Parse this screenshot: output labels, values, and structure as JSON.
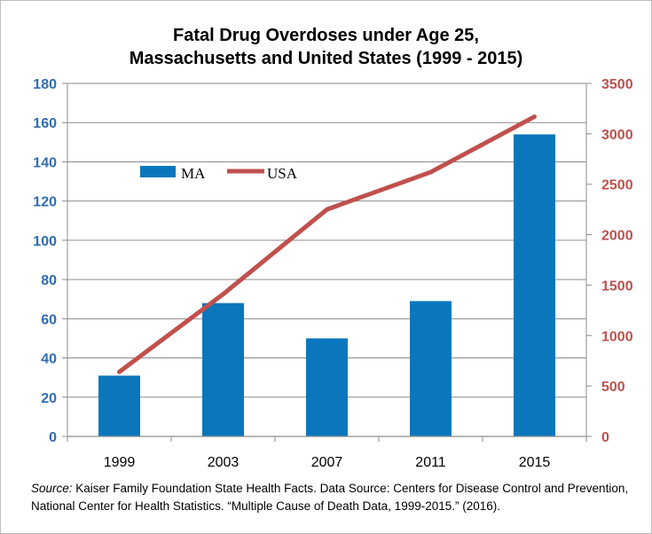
{
  "chart_data": {
    "type": "bar+line",
    "title_line1": "Fatal Drug Overdoses under Age 25,",
    "title_line2": "Massachusetts and United States (1999 - 2015)",
    "categories": [
      "1999",
      "2003",
      "2007",
      "2011",
      "2015"
    ],
    "series": [
      {
        "name": "MA",
        "type": "bar",
        "axis": "left",
        "color": "#0a77bd",
        "values": [
          31,
          68,
          50,
          69,
          154
        ]
      },
      {
        "name": "USA",
        "type": "line",
        "axis": "right",
        "color": "#c0504d",
        "values": [
          640,
          1410,
          2250,
          2620,
          3170
        ]
      }
    ],
    "left_axis": {
      "ylim": [
        0,
        180
      ],
      "ticks": [
        "0",
        "20",
        "40",
        "60",
        "80",
        "100",
        "120",
        "140",
        "160",
        "180"
      ],
      "color": "#2e6db4"
    },
    "right_axis": {
      "ylim": [
        0,
        3500
      ],
      "ticks": [
        "0",
        "500",
        "1000",
        "1500",
        "2000",
        "2500",
        "3000",
        "3500"
      ],
      "color": "#c0504d"
    },
    "legend": {
      "position": "upper-left",
      "entries": [
        "MA",
        "USA"
      ]
    },
    "grid": "horizontal (left axis)"
  },
  "source": {
    "label": "Source:",
    "text": " Kaiser Family Foundation State Health Facts. Data Source: Centers for Disease Control and Prevention, National Center for Health Statistics. “Multiple Cause of Death Data, 1999-2015.” (2016)."
  }
}
